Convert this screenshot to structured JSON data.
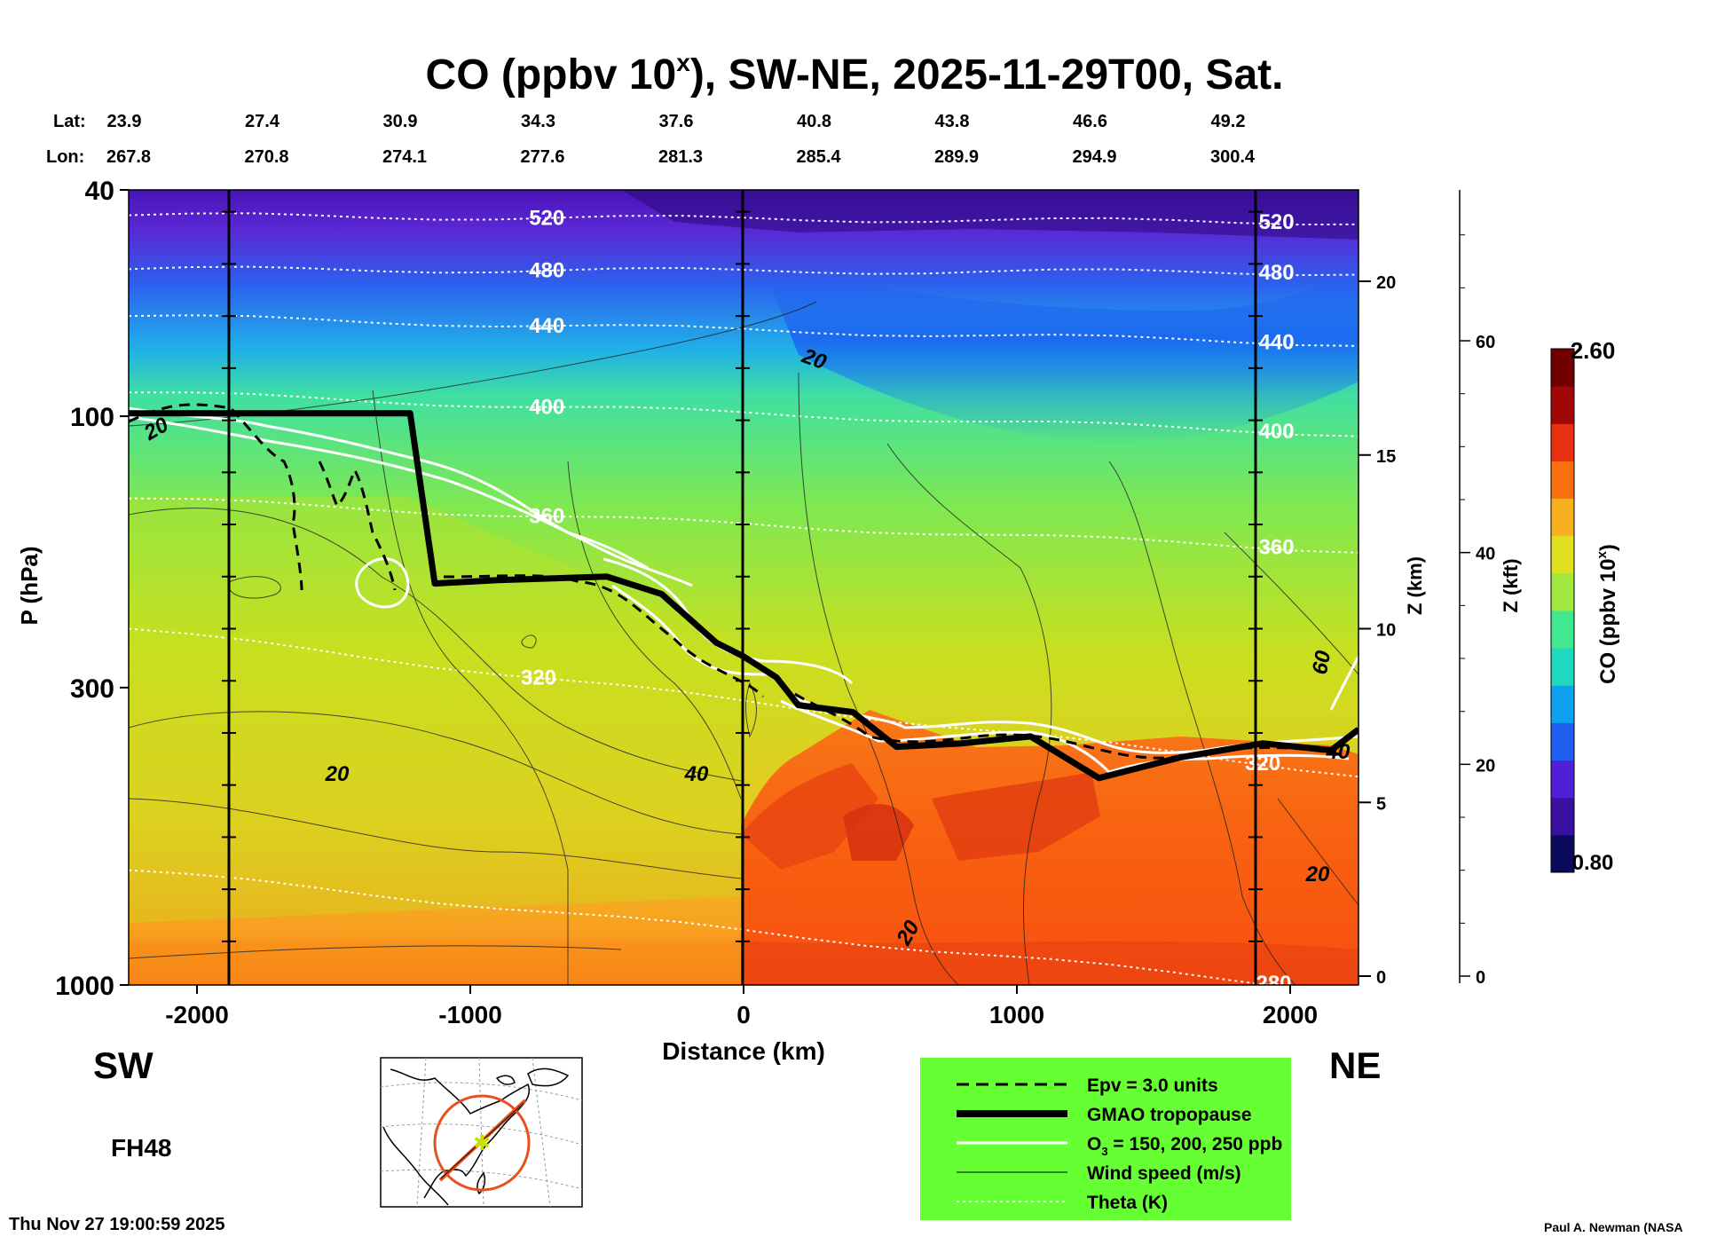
{
  "chart_data": {
    "type": "heatmap",
    "title": "CO (ppbv 10",
    "title_sup": "x",
    "title_rest": "), SW-NE, 2025-11-29T00, Sat.",
    "lat_label": "Lat:",
    "lon_label": "Lon:",
    "latitudes": [
      "23.9",
      "27.4",
      "30.9",
      "34.3",
      "37.6",
      "40.8",
      "43.8",
      "46.6",
      "49.2"
    ],
    "longitudes": [
      "267.8",
      "270.8",
      "274.1",
      "277.6",
      "281.3",
      "285.4",
      "289.9",
      "294.9",
      "300.4"
    ],
    "xlabel": "Distance (km)",
    "x_ticks": [
      "-2000",
      "-1000",
      "0",
      "1000",
      "2000"
    ],
    "xlim": [
      -2250,
      2250
    ],
    "ylabel": "P (hPa)",
    "y_ticks": [
      "40",
      "100",
      "300",
      "1000"
    ],
    "ylim": [
      1000,
      40
    ],
    "z_km_label": "Z (km)",
    "z_km_ticks": [
      "0",
      "5",
      "10",
      "15",
      "20"
    ],
    "z_kft_label": "Z (kft)",
    "z_kft_ticks": [
      "0",
      "20",
      "40",
      "60"
    ],
    "left_end_label": "SW",
    "right_end_label": "NE",
    "forecast_hour": "FH48",
    "timestamp": "Thu Nov 27 19:00:59 2025",
    "credit": "Paul A. Newman (NASA",
    "colorbar": {
      "label": "CO (ppbv 10",
      "label_sup": "x",
      "label_rest": ")",
      "min_label": "0.80",
      "max_label": "2.60",
      "min": 0.8,
      "max": 2.6,
      "colors": [
        "#0a0a5a",
        "#3a10a0",
        "#5020d8",
        "#2060f0",
        "#10a0f0",
        "#20d8c0",
        "#40e890",
        "#a0e840",
        "#e0e020",
        "#f8b020",
        "#f87010",
        "#e83010",
        "#a00808",
        "#700000"
      ]
    },
    "theta_contours": [
      {
        "label": "520",
        "km": 21.8
      },
      {
        "label": "480",
        "km": 20.3
      },
      {
        "label": "440",
        "km": 18.6
      },
      {
        "label": "400",
        "km": 16.2
      },
      {
        "label": "360",
        "km": 13.0
      },
      {
        "label": "320",
        "km": 7.9
      },
      {
        "label": "280",
        "km": 1.3
      }
    ],
    "windspeed_labels": [
      "20",
      "20",
      "40",
      "20",
      "20",
      "60",
      "40"
    ],
    "tropopause_km": [
      [
        -2250,
        16.2
      ],
      [
        -1220,
        16.2
      ],
      [
        -1130,
        11.3
      ],
      [
        -900,
        11.4
      ],
      [
        -500,
        11.5
      ],
      [
        -300,
        11.0
      ],
      [
        -100,
        9.6
      ],
      [
        0,
        9.2
      ],
      [
        120,
        8.6
      ],
      [
        200,
        7.8
      ],
      [
        400,
        7.6
      ],
      [
        560,
        6.6
      ],
      [
        800,
        6.7
      ],
      [
        1050,
        6.9
      ],
      [
        1300,
        5.7
      ],
      [
        1600,
        6.3
      ],
      [
        1900,
        6.7
      ],
      [
        2150,
        6.5
      ],
      [
        2250,
        7.1
      ]
    ],
    "legend": {
      "epv": "Epv = 3.0 units",
      "tropopause": "GMAO tropopause",
      "ozone_prefix": "O",
      "ozone_sub": "3",
      "ozone_rest": " = 150, 200, 250 ppb",
      "wind": "Wind speed (m/s)",
      "theta": "Theta (K)"
    },
    "colors": {
      "legend_bg": "#66ff33",
      "map_track": "#e85020",
      "map_marker": "#c8e000"
    }
  }
}
